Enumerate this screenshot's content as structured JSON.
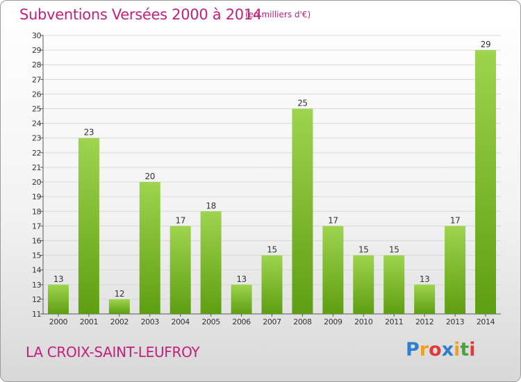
{
  "header": {
    "title": "Subventions Versées 2000 à 2014",
    "subtitle": "(en milliers d'€)"
  },
  "footer": {
    "commune": "LA CROIX-SAINT-LEUFROY",
    "logo_letters": [
      {
        "ch": "P",
        "color": "#2f7fd0"
      },
      {
        "ch": "r",
        "color": "#f0a020"
      },
      {
        "ch": "o",
        "color": "#e03a3a"
      },
      {
        "ch": "x",
        "color": "#2f7fd0"
      },
      {
        "ch": "i",
        "color": "#f0a020"
      },
      {
        "ch": "t",
        "color": "#4aa43a"
      },
      {
        "ch": "i",
        "color": "#e03a3a"
      }
    ]
  },
  "colors": {
    "title": "#c2207a",
    "bar_top": "#9ed44e",
    "bar_bottom": "#5e9e12",
    "grid": "#d8d8d8"
  },
  "chart_data": {
    "type": "bar",
    "categories": [
      "2000",
      "2001",
      "2002",
      "2003",
      "2004",
      "2005",
      "2006",
      "2007",
      "2008",
      "2009",
      "2010",
      "2011",
      "2012",
      "2013",
      "2014"
    ],
    "values": [
      13,
      23,
      12,
      20,
      17,
      18,
      13,
      15,
      25,
      17,
      15,
      15,
      13,
      17,
      29
    ],
    "title": "Subventions Versées 2000 à 2014",
    "subtitle": "(en milliers d'€)",
    "ylim": [
      11,
      30
    ],
    "yticks": [
      11,
      12,
      13,
      14,
      15,
      16,
      17,
      18,
      19,
      20,
      21,
      22,
      23,
      24,
      25,
      26,
      27,
      28,
      29,
      30
    ],
    "grid": true,
    "data_labels": true
  }
}
